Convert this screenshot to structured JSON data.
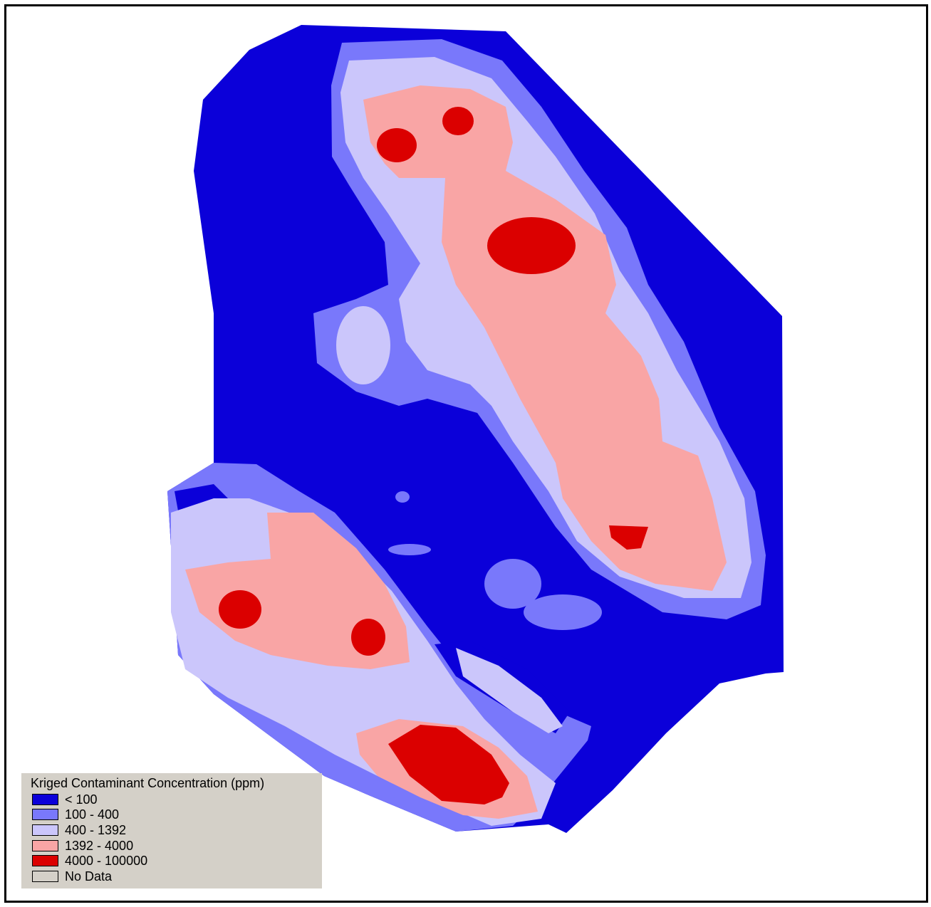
{
  "legend": {
    "title": "Kriged Contaminant Concentration (ppm)",
    "items": [
      {
        "label": "< 100",
        "color": "#0b00d9"
      },
      {
        "label": "100 - 400",
        "color": "#7978fb"
      },
      {
        "label": "400 - 1392",
        "color": "#cbc6fb"
      },
      {
        "label": "1392 - 4000",
        "color": "#f9a5a5"
      },
      {
        "label": "4000 - 100000",
        "color": "#db0000"
      },
      {
        "label": "No Data",
        "color": "#d4d0c8"
      }
    ]
  },
  "colors": {
    "low": "#0b00d9",
    "medium_low": "#7978fb",
    "medium": "#cbc6fb",
    "medium_high": "#f9a5a5",
    "high": "#db0000",
    "background": "#ffffff",
    "legend_background": "#d4d0c8"
  }
}
